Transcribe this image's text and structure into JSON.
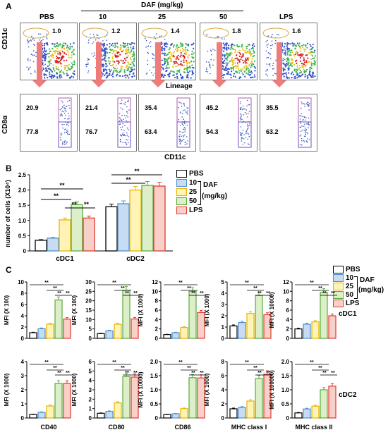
{
  "panelA": {
    "letter": "A",
    "header": "DAF (mg/kg)",
    "columns": [
      "PBS",
      "10",
      "25",
      "50",
      "LPS"
    ],
    "top_values": [
      "1.0",
      "1.2",
      "1.4",
      "1.8",
      "1.6"
    ],
    "top_ylabel": "CD11c",
    "top_xlabel": "Lineage",
    "bottom_upper": [
      "20.9",
      "21.4",
      "35.4",
      "45.2",
      "35.5"
    ],
    "bottom_lower": [
      "77.8",
      "76.7",
      "63.4",
      "54.3",
      "63.2"
    ],
    "bottom_ylabel": "CD8α",
    "bottom_xlabel": "CD11c"
  },
  "panelB": {
    "letter": "B",
    "legend": {
      "items": [
        "PBS",
        "10",
        "25",
        "50",
        "LPS"
      ],
      "daf": "DAF",
      "unit": "(mg/kg)"
    },
    "sig": "**"
  },
  "panelC": {
    "letter": "C",
    "row_labels": [
      "cDC1",
      "cDC2"
    ],
    "legend": {
      "items": [
        "PBS",
        "10",
        "25",
        "50",
        "LPS"
      ],
      "daf": "DAF",
      "unit": "(mg/kg)"
    }
  },
  "colors": {
    "PBS": "#ffffff",
    "10": "#c7dcf2",
    "25": "#fff3b5",
    "50": "#dcefc9",
    "LPS": "#f9cfc9",
    "edge_PBS": "#000000",
    "edge_10": "#4f8fcf",
    "edge_25": "#e8b400",
    "edge_50": "#5aaa3c",
    "edge_LPS": "#e23b2e"
  },
  "chart_data": [
    {
      "type": "bar",
      "id": "B",
      "ylabel": "number of cells (X10⁴)",
      "categories": [
        "cDC1",
        "cDC2"
      ],
      "ylim": [
        0,
        2.5
      ],
      "yticks": [
        "0",
        "0.5",
        "1.0",
        "1.5",
        "2.0",
        "2.5"
      ],
      "series": [
        {
          "name": "PBS",
          "values": [
            0.35,
            1.45
          ]
        },
        {
          "name": "10",
          "values": [
            0.42,
            1.55
          ]
        },
        {
          "name": "25",
          "values": [
            1.02,
            2.0
          ]
        },
        {
          "name": "50",
          "values": [
            1.52,
            2.15
          ]
        },
        {
          "name": "LPS",
          "values": [
            1.08,
            2.13
          ]
        }
      ]
    },
    {
      "type": "bar",
      "id": "C1",
      "ylabel": "MFI (X 100)",
      "ylim": [
        0,
        10
      ],
      "yticks": [
        "0",
        "2",
        "4",
        "6",
        "8",
        "10"
      ],
      "values": [
        1.0,
        1.7,
        2.5,
        6.8,
        3.4
      ]
    },
    {
      "type": "bar",
      "id": "C2",
      "ylabel": "MFI (X 100)",
      "ylim": [
        0,
        30
      ],
      "yticks": [
        "0",
        "5",
        "10",
        "15",
        "20",
        "25",
        "30"
      ],
      "values": [
        2.5,
        4.0,
        7.5,
        25.5,
        10.3
      ]
    },
    {
      "type": "bar",
      "id": "C3",
      "ylabel": "MFI (X 1000)",
      "ylim": [
        0,
        12
      ],
      "yticks": [
        "0",
        "2",
        "4",
        "6",
        "8",
        "10",
        "12"
      ],
      "values": [
        0.8,
        1.2,
        2.3,
        10.0,
        5.5
      ]
    },
    {
      "type": "bar",
      "id": "C4",
      "ylabel": "MFI (X 1000)",
      "ylim": [
        0,
        5
      ],
      "yticks": [
        "0",
        "1",
        "2",
        "3",
        "4",
        "5"
      ],
      "values": [
        1.1,
        1.4,
        2.2,
        3.8,
        2.1
      ]
    },
    {
      "type": "bar",
      "id": "C5",
      "ylabel": "MFI (X 10000)",
      "ylim": [
        0,
        12
      ],
      "yticks": [
        "0",
        "2",
        "4",
        "6",
        "8",
        "10",
        "12"
      ],
      "values": [
        2.0,
        3.0,
        3.5,
        9.8,
        4.8
      ]
    },
    {
      "type": "bar",
      "id": "C6",
      "ylabel": "MFI (X 1000)",
      "xlabel": "CD40",
      "ylim": [
        0,
        4
      ],
      "yticks": [
        "0",
        "1",
        "2",
        "3",
        "4"
      ],
      "values": [
        0.25,
        0.4,
        0.85,
        2.45,
        2.45
      ]
    },
    {
      "type": "bar",
      "id": "C7",
      "ylabel": "MFI (X 1000)",
      "xlabel": "CD80",
      "ylim": [
        0,
        6
      ],
      "yticks": [
        "0",
        "1",
        "2",
        "3",
        "4",
        "5",
        "6"
      ],
      "values": [
        0.5,
        0.7,
        1.6,
        4.4,
        4.35
      ]
    },
    {
      "type": "bar",
      "id": "C8",
      "ylabel": "MFI (X 10000)",
      "xlabel": "CD86",
      "ylim": [
        0,
        2.0
      ],
      "yticks": [
        "0",
        "0.5",
        "1.0",
        "1.5",
        "2.0"
      ],
      "values": [
        0.12,
        0.15,
        0.33,
        1.43,
        1.42
      ]
    },
    {
      "type": "bar",
      "id": "C9",
      "ylabel": "MFI (X 1000)",
      "xlabel": "MHC class I",
      "ylim": [
        0,
        8
      ],
      "yticks": [
        "0",
        "2",
        "4",
        "6",
        "8"
      ],
      "values": [
        1.3,
        1.5,
        2.4,
        5.6,
        6.2
      ]
    },
    {
      "type": "bar",
      "id": "C10",
      "ylabel": "MFI (X 100000)",
      "xlabel": "MHC class II",
      "ylim": [
        0,
        2.0
      ],
      "yticks": [
        "0",
        "0.5",
        "1.0",
        "1.5",
        "2.0"
      ],
      "values": [
        0.18,
        0.32,
        0.42,
        1.0,
        1.13
      ]
    }
  ]
}
